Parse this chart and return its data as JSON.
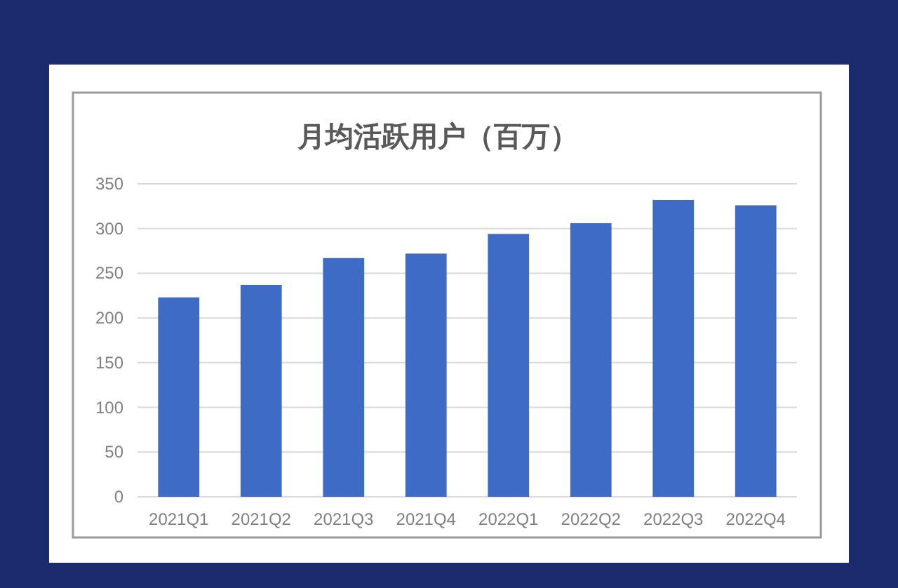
{
  "chart_data": {
    "type": "bar",
    "title": "月均活跃用户（百万）",
    "categories": [
      "2021Q1",
      "2021Q2",
      "2021Q3",
      "2021Q4",
      "2022Q1",
      "2022Q2",
      "2022Q3",
      "2022Q4"
    ],
    "values": [
      223,
      237,
      267,
      272,
      294,
      306,
      332,
      326
    ],
    "color": "#3d6bc6",
    "ylim": [
      0,
      350
    ],
    "yticks": [
      0,
      50,
      100,
      150,
      200,
      250,
      300,
      350
    ],
    "grid": "y"
  }
}
